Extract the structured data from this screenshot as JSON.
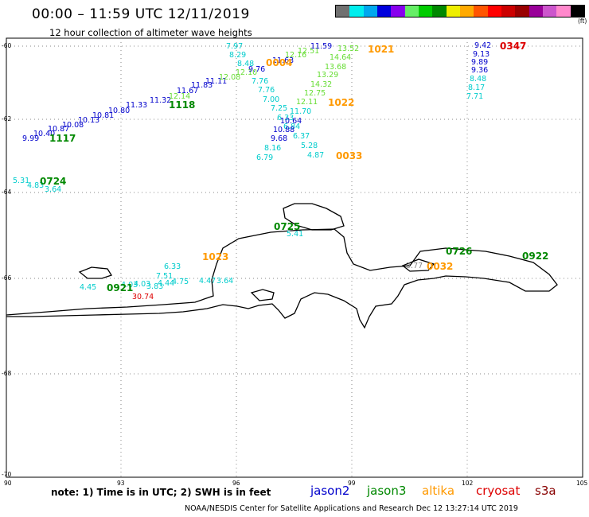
{
  "title": "00:00 – 11:59 UTC 12/11/2019",
  "subtitle": "12 hour collection of altimeter wave heights",
  "legend": {
    "unit": "(ft)",
    "colors": [
      "#707070",
      "#00eeee",
      "#00a8ee",
      "#0000dd",
      "#8800ee",
      "#66ee66",
      "#00cc00",
      "#008800",
      "#eeee00",
      "#ffaa00",
      "#ff5500",
      "#ff0000",
      "#cc0000",
      "#990000",
      "#990099",
      "#cc55cc",
      "#ff88cc",
      "#000000"
    ]
  },
  "map": {
    "lat_labels": [
      "-60",
      "-62",
      "-64",
      "-66",
      "-68",
      "-70"
    ],
    "lon_labels": [
      "90",
      "93",
      "96",
      "99",
      "102",
      "105"
    ]
  },
  "colors": {
    "jason2": "#0000cc",
    "jason3": "#008800",
    "altika": "#ff9900",
    "cryosat": "#dd0000",
    "s3a": "#880000",
    "c_cyan": "#00cccc",
    "c_lgreen": "#66dd33",
    "c_blue": "#0000cc",
    "c_red": "#dd0000"
  },
  "heights": {
    "h1": "9.99",
    "h2": "10.40",
    "h3": "10.87",
    "h4": "10.08",
    "h5": "10.13",
    "h6": "10.81",
    "h7": "10.80",
    "h8": "11.33",
    "h9": "11.32",
    "h10": "11.67",
    "h11": "11.83",
    "h12": "11.11",
    "h13": "12.14",
    "h14": "12.08",
    "h15": "12.10",
    "h16": "7.97",
    "h17": "8.29",
    "h18": "8.48",
    "h19": "9.76",
    "h20": "7.76",
    "h21": "7.76",
    "h22": "7.00",
    "h23": "7.25",
    "h24": "6.33",
    "h25": "6.84",
    "h26": "10.88",
    "h27": "9.68",
    "h28": "8.16",
    "h29": "6.79",
    "h30": "6.37",
    "h31": "5.28",
    "h32": "4.87",
    "h33": "11.70",
    "h34": "10.64",
    "h35": "11.63",
    "h36": "12.16",
    "h37": "12.51",
    "h38": "11.59",
    "h39": "13.52",
    "h40": "14.64",
    "h41": "13.68",
    "h42": "13.29",
    "h43": "14.32",
    "h44": "12.75",
    "h45": "12.11",
    "h46": "9.42",
    "h47": "9.13",
    "h48": "9.89",
    "h49": "9.36",
    "h50": "8.48",
    "h51": "8.17",
    "h52": "7.71",
    "h53": "5.31",
    "h54": "4.83",
    "h55": "3.64",
    "h57": "5.41",
    "h59": "6.33",
    "h60": "7.51",
    "h61": "4.45",
    "h62": "4.03",
    "h63": "4.03",
    "h64": "3.83",
    "h65": "4.44",
    "h66": "4.75",
    "h67": "4.47",
    "h68": "3.64",
    "h69": "30.74",
    "h71": "3.77"
  },
  "times": {
    "t1": "1117",
    "t2": "1118",
    "t3": "0724",
    "t4": "0004",
    "t5": "1021",
    "t6": "1022",
    "t7": "0033",
    "t8": "0347",
    "t9": "0725",
    "t10": "1023",
    "t11": "0921",
    "t12": "0726",
    "t13": "0032",
    "t14": "0922"
  },
  "footer": {
    "note": "note: 1) Time is in UTC; 2) SWH is in feet",
    "sats": [
      "jason2",
      "jason3",
      "altika",
      "cryosat",
      "s3a"
    ],
    "credit": "NOAA/NESDIS Center for Satellite Applications and Research    Dec 12 13:27:14 UTC 2019"
  }
}
